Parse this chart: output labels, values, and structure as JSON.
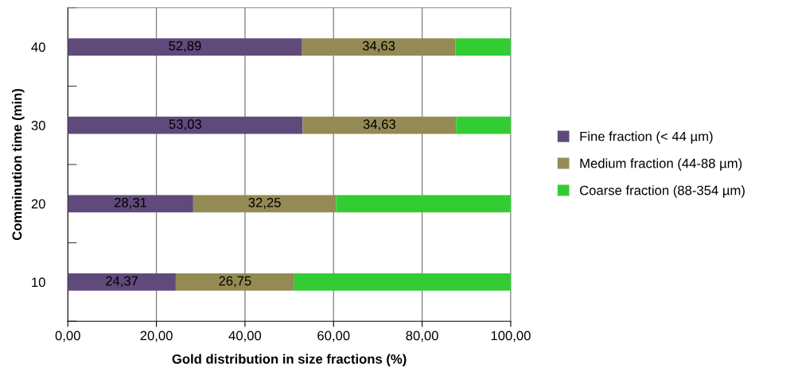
{
  "chart_data": {
    "type": "bar",
    "orientation": "horizontal",
    "stacked": true,
    "xlabel": "Gold distribution in size fractions (%)",
    "ylabel": "Comminution time (min)",
    "categories": [
      "40",
      "30",
      "20",
      "10"
    ],
    "series": [
      {
        "name": "Fine fraction (< 44 µm)",
        "color": "#604a7b",
        "values": [
          52.89,
          53.03,
          28.31,
          24.37
        ],
        "value_labels": [
          "52,89",
          "53,03",
          "28,31",
          "24,37"
        ]
      },
      {
        "name": "Medium fraction (44-88 µm)",
        "color": "#948a54",
        "values": [
          34.63,
          34.63,
          32.25,
          26.75
        ],
        "value_labels": [
          "34,63",
          "34,63",
          "32,25",
          "26,75"
        ]
      },
      {
        "name": "Coarse fraction (88-354 µm)",
        "color": "#33cc33",
        "values": [
          12.48,
          12.34,
          39.44,
          48.88
        ]
      }
    ],
    "xlim": [
      0,
      100
    ],
    "xticks": [
      {
        "value": 0,
        "label": "0,00"
      },
      {
        "value": 20,
        "label": "20,00"
      },
      {
        "value": 40,
        "label": "40,00"
      },
      {
        "value": 60,
        "label": "60,00"
      },
      {
        "value": 80,
        "label": "80,00"
      },
      {
        "value": 100,
        "label": "100,00"
      }
    ],
    "grid": "x",
    "legend": "right"
  }
}
